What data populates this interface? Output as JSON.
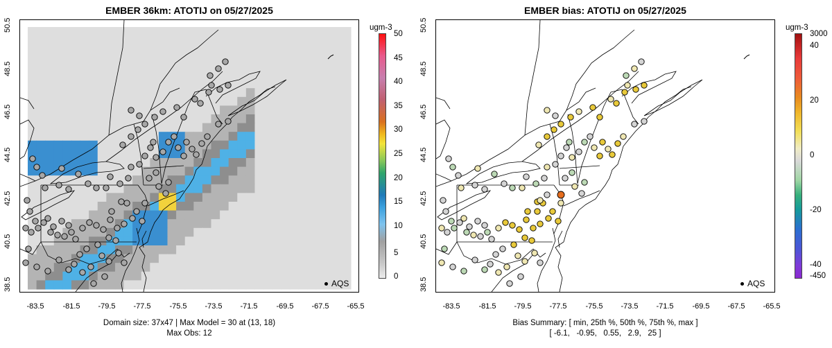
{
  "left": {
    "title": "EMBER 36km: ATOTIJ on 05/27/2025",
    "footer_line1": "Domain size: 37x47 | Max Model = 30 at (13, 18)",
    "footer_line2": "Max Obs: 12",
    "colorbar_unit": "ugm-3",
    "colorbar_ticks": [
      "50",
      "45",
      "40",
      "35",
      "30",
      "25",
      "20",
      "15",
      "10",
      "5",
      "0"
    ],
    "legend_label": "AQS"
  },
  "right": {
    "title": "EMBER bias: ATOTIJ on 05/27/2025",
    "footer_line1": "Bias Summary: [ min, 25th %, 50th %, 75th %, max ]",
    "footer_line2": "[ -6.1,   -0.95,   0.55,   2.9,   25 ]",
    "colorbar_unit": "ugm-3",
    "colorbar_ticks": [
      "3000",
      "40",
      "20",
      "0",
      "-20",
      "-40",
      "-450"
    ],
    "legend_label": "AQS"
  },
  "axes": {
    "x_ticks": [
      "-83.5",
      "-81.5",
      "-79.5",
      "-77.5",
      "-75.5",
      "-73.5",
      "-71.5",
      "-69.5",
      "-67.5",
      "-65.5"
    ],
    "y_ticks": [
      "50.5",
      "48.5",
      "46.5",
      "44.5",
      "42.5",
      "40.5",
      "38.5"
    ]
  },
  "colors": {
    "model_gray_light": "#dedede",
    "model_gray": "#b4b4b4",
    "model_gray_dark": "#8e8e8e",
    "model_blue": "#4fb1e6",
    "model_blue_dark": "#3a8fd0",
    "model_yellow": "#f2d23c",
    "bias_neutral": "#d4d4d4",
    "bias_pale_yellow": "#efe7b2",
    "bias_yellow": "#e8c93a",
    "bias_orange": "#e56d1e",
    "bias_green": "#bcd9b5",
    "obs_gray": "#a7a7a7"
  }
}
